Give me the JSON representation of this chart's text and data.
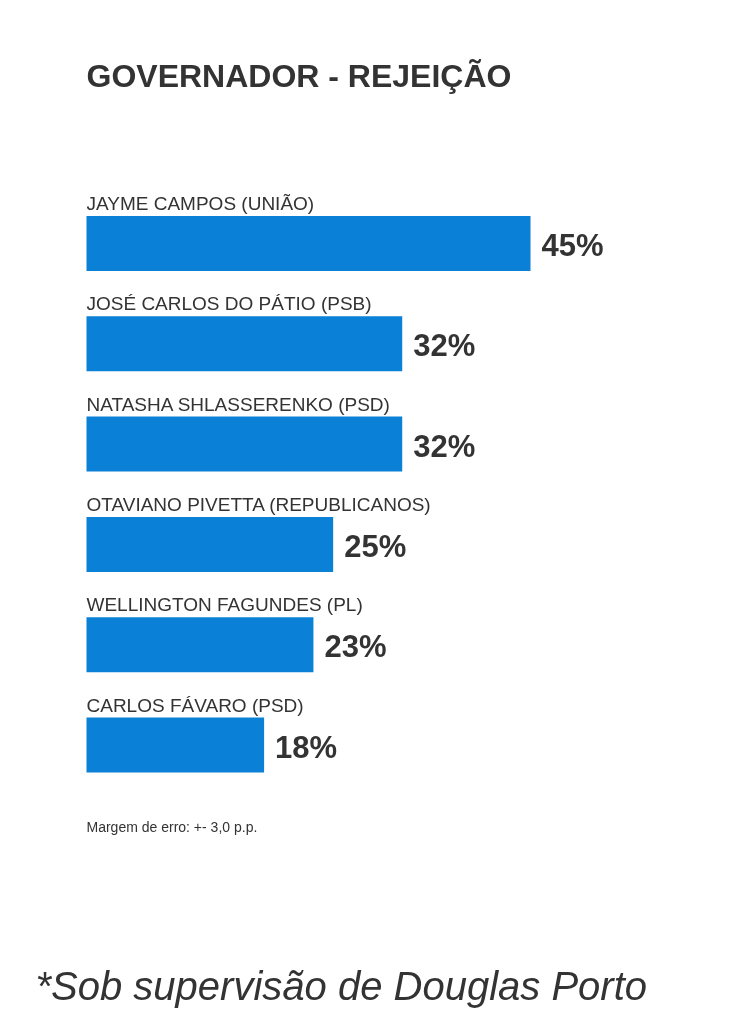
{
  "chart_data": {
    "type": "bar",
    "orientation": "horizontal",
    "title": "GOVERNADOR - REJEIÇÃO",
    "categories": [
      "JAYME CAMPOS (UNIÃO)",
      "JOSÉ CARLOS DO PÁTIO (PSB)",
      "NATASHA SHLASSERENKO (PSD)",
      "OTAVIANO PIVETTA (REPUBLICANOS)",
      "WELLINGTON FAGUNDES (PL)",
      "CARLOS FÁVARO (PSD)"
    ],
    "values": [
      45,
      32,
      32,
      25,
      23,
      18
    ],
    "value_labels": [
      "45%",
      "32%",
      "32%",
      "25%",
      "23%",
      "18%"
    ],
    "color": "#0a80d6",
    "annotations": [
      "Margem de erro: +- 3,0 p.p.",
      "*Sob supervisão de Douglas Porto"
    ]
  }
}
